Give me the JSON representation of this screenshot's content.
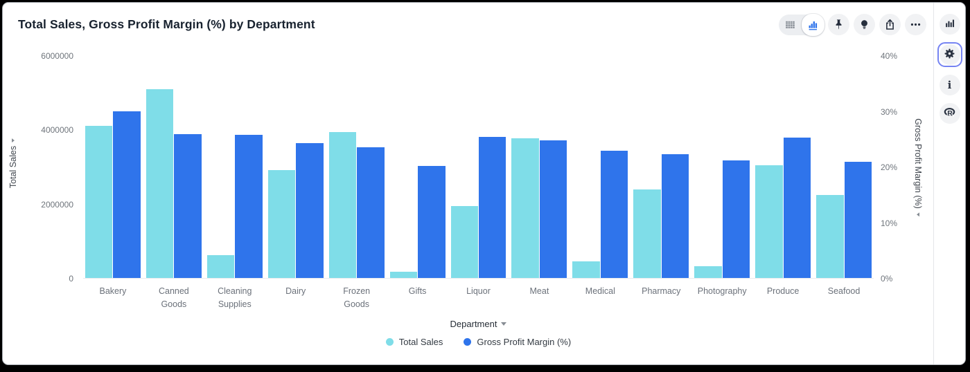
{
  "header": {
    "title": "Total Sales, Gross Profit Margin (%) by Department"
  },
  "toolbar": {
    "view_toggle": {
      "table_icon": "table-icon",
      "chart_icon": "bar-chart-icon",
      "active": "chart"
    },
    "buttons": [
      {
        "name": "pin",
        "icon": "pin-icon"
      },
      {
        "name": "insights",
        "icon": "lightbulb-icon"
      },
      {
        "name": "export",
        "icon": "share-icon"
      },
      {
        "name": "more-options",
        "icon": "ellipsis-icon"
      }
    ]
  },
  "sidebar": {
    "items": [
      {
        "name": "chart-panel",
        "icon": "bar-chart-icon",
        "selected": false
      },
      {
        "name": "settings-panel",
        "icon": "gear-icon",
        "selected": true
      },
      {
        "name": "info-panel",
        "icon": "info-icon",
        "selected": false
      },
      {
        "name": "r-panel",
        "icon": "r-logo-icon",
        "selected": false
      }
    ],
    "selected_border_color": "#7583f2"
  },
  "colors": {
    "total_sales": "#7fdde8",
    "gross_profit_margin": "#2f74eb",
    "title_text": "#18222f",
    "tick_text": "#6e747b"
  },
  "chart_data": {
    "type": "bar",
    "title": "Total Sales, Gross Profit Margin (%) by Department",
    "categories": [
      "Bakery",
      "Canned Goods",
      "Cleaning Supplies",
      "Dairy",
      "Frozen Goods",
      "Gifts",
      "Liquor",
      "Meat",
      "Medical",
      "Pharmacy",
      "Photography",
      "Produce",
      "Seafood"
    ],
    "series": [
      {
        "name": "Total Sales",
        "axis": "left",
        "color": "#7fdde8",
        "values": [
          4120000,
          5110000,
          610000,
          2910000,
          3950000,
          170000,
          1950000,
          3780000,
          440000,
          2390000,
          320000,
          3040000,
          2250000
        ]
      },
      {
        "name": "Gross Profit Margin (%)",
        "axis": "right",
        "color": "#2f74eb",
        "values": [
          30.0,
          25.9,
          25.8,
          24.3,
          23.6,
          20.2,
          25.4,
          24.8,
          22.9,
          22.3,
          21.2,
          25.3,
          20.9
        ]
      }
    ],
    "left_axis": {
      "label": "Total Sales",
      "min": 0,
      "max": 6000000,
      "ticks": [
        "6000000",
        "4000000",
        "2000000",
        "0"
      ]
    },
    "right_axis": {
      "label": "Gross Profit Margin (%)",
      "min": 0,
      "max": 40,
      "ticks": [
        "40%",
        "30%",
        "20%",
        "10%",
        "0%"
      ]
    },
    "xlabel": "Department",
    "legend": [
      "Total Sales",
      "Gross Profit Margin (%)"
    ],
    "legend_position": "bottom",
    "grid": false
  }
}
